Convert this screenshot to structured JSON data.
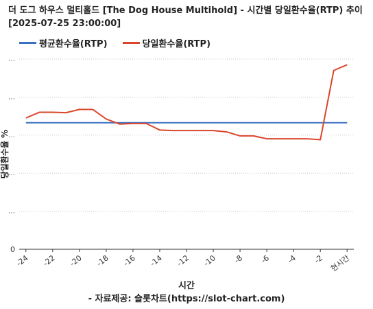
{
  "chart_data": {
    "type": "line",
    "title": "더 도그 하우스 멀티홀드 [The Dog House Multihold] - 시간별 당일환수율(RTP) 추이 [2025-07-25 23:00:00]",
    "xlabel": "시간",
    "ylabel": "당일환수율 %",
    "credit": "- 자료제공: 슬롯차트(https://slot-chart.com)",
    "x_ticks": [
      "-24",
      "-22",
      "-20",
      "-18",
      "-16",
      "-14",
      "-12",
      "-10",
      "-8",
      "-6",
      "-4",
      "-2",
      "현시간"
    ],
    "y_tick_zero": "0",
    "x": [
      -24,
      -23,
      -22,
      -21,
      -20,
      -19,
      -18,
      -17,
      -16,
      -15,
      -14,
      -13,
      -12,
      -11,
      -10,
      -9,
      -8,
      -7,
      -6,
      -5,
      -4,
      -3,
      -2,
      -1,
      0
    ],
    "series": [
      {
        "name": "평균환수율(RTP)",
        "color": "#3b6fc4",
        "values": [
          96.5,
          96.5,
          96.5,
          96.5,
          96.5,
          96.5,
          96.5,
          96.5,
          96.5,
          96.5,
          96.5,
          96.5,
          96.5,
          96.5,
          96.5,
          96.5,
          96.5,
          96.5,
          96.5,
          96.5,
          96.5,
          96.5,
          96.5,
          96.5,
          96.5
        ]
      },
      {
        "name": "당일환수율(RTP)",
        "color": "#d9462b",
        "values": [
          99.0,
          102.0,
          102.0,
          101.8,
          103.5,
          103.5,
          98.5,
          95.8,
          96.1,
          96.1,
          92.7,
          92.4,
          92.4,
          92.4,
          92.4,
          91.7,
          89.6,
          89.6,
          88.1,
          88.1,
          88.1,
          88.1,
          87.6,
          124.0,
          127.0
        ]
      }
    ],
    "yrange": [
      30,
      130
    ],
    "grid": "horizontal-dotted",
    "legend_position": "top-left"
  }
}
